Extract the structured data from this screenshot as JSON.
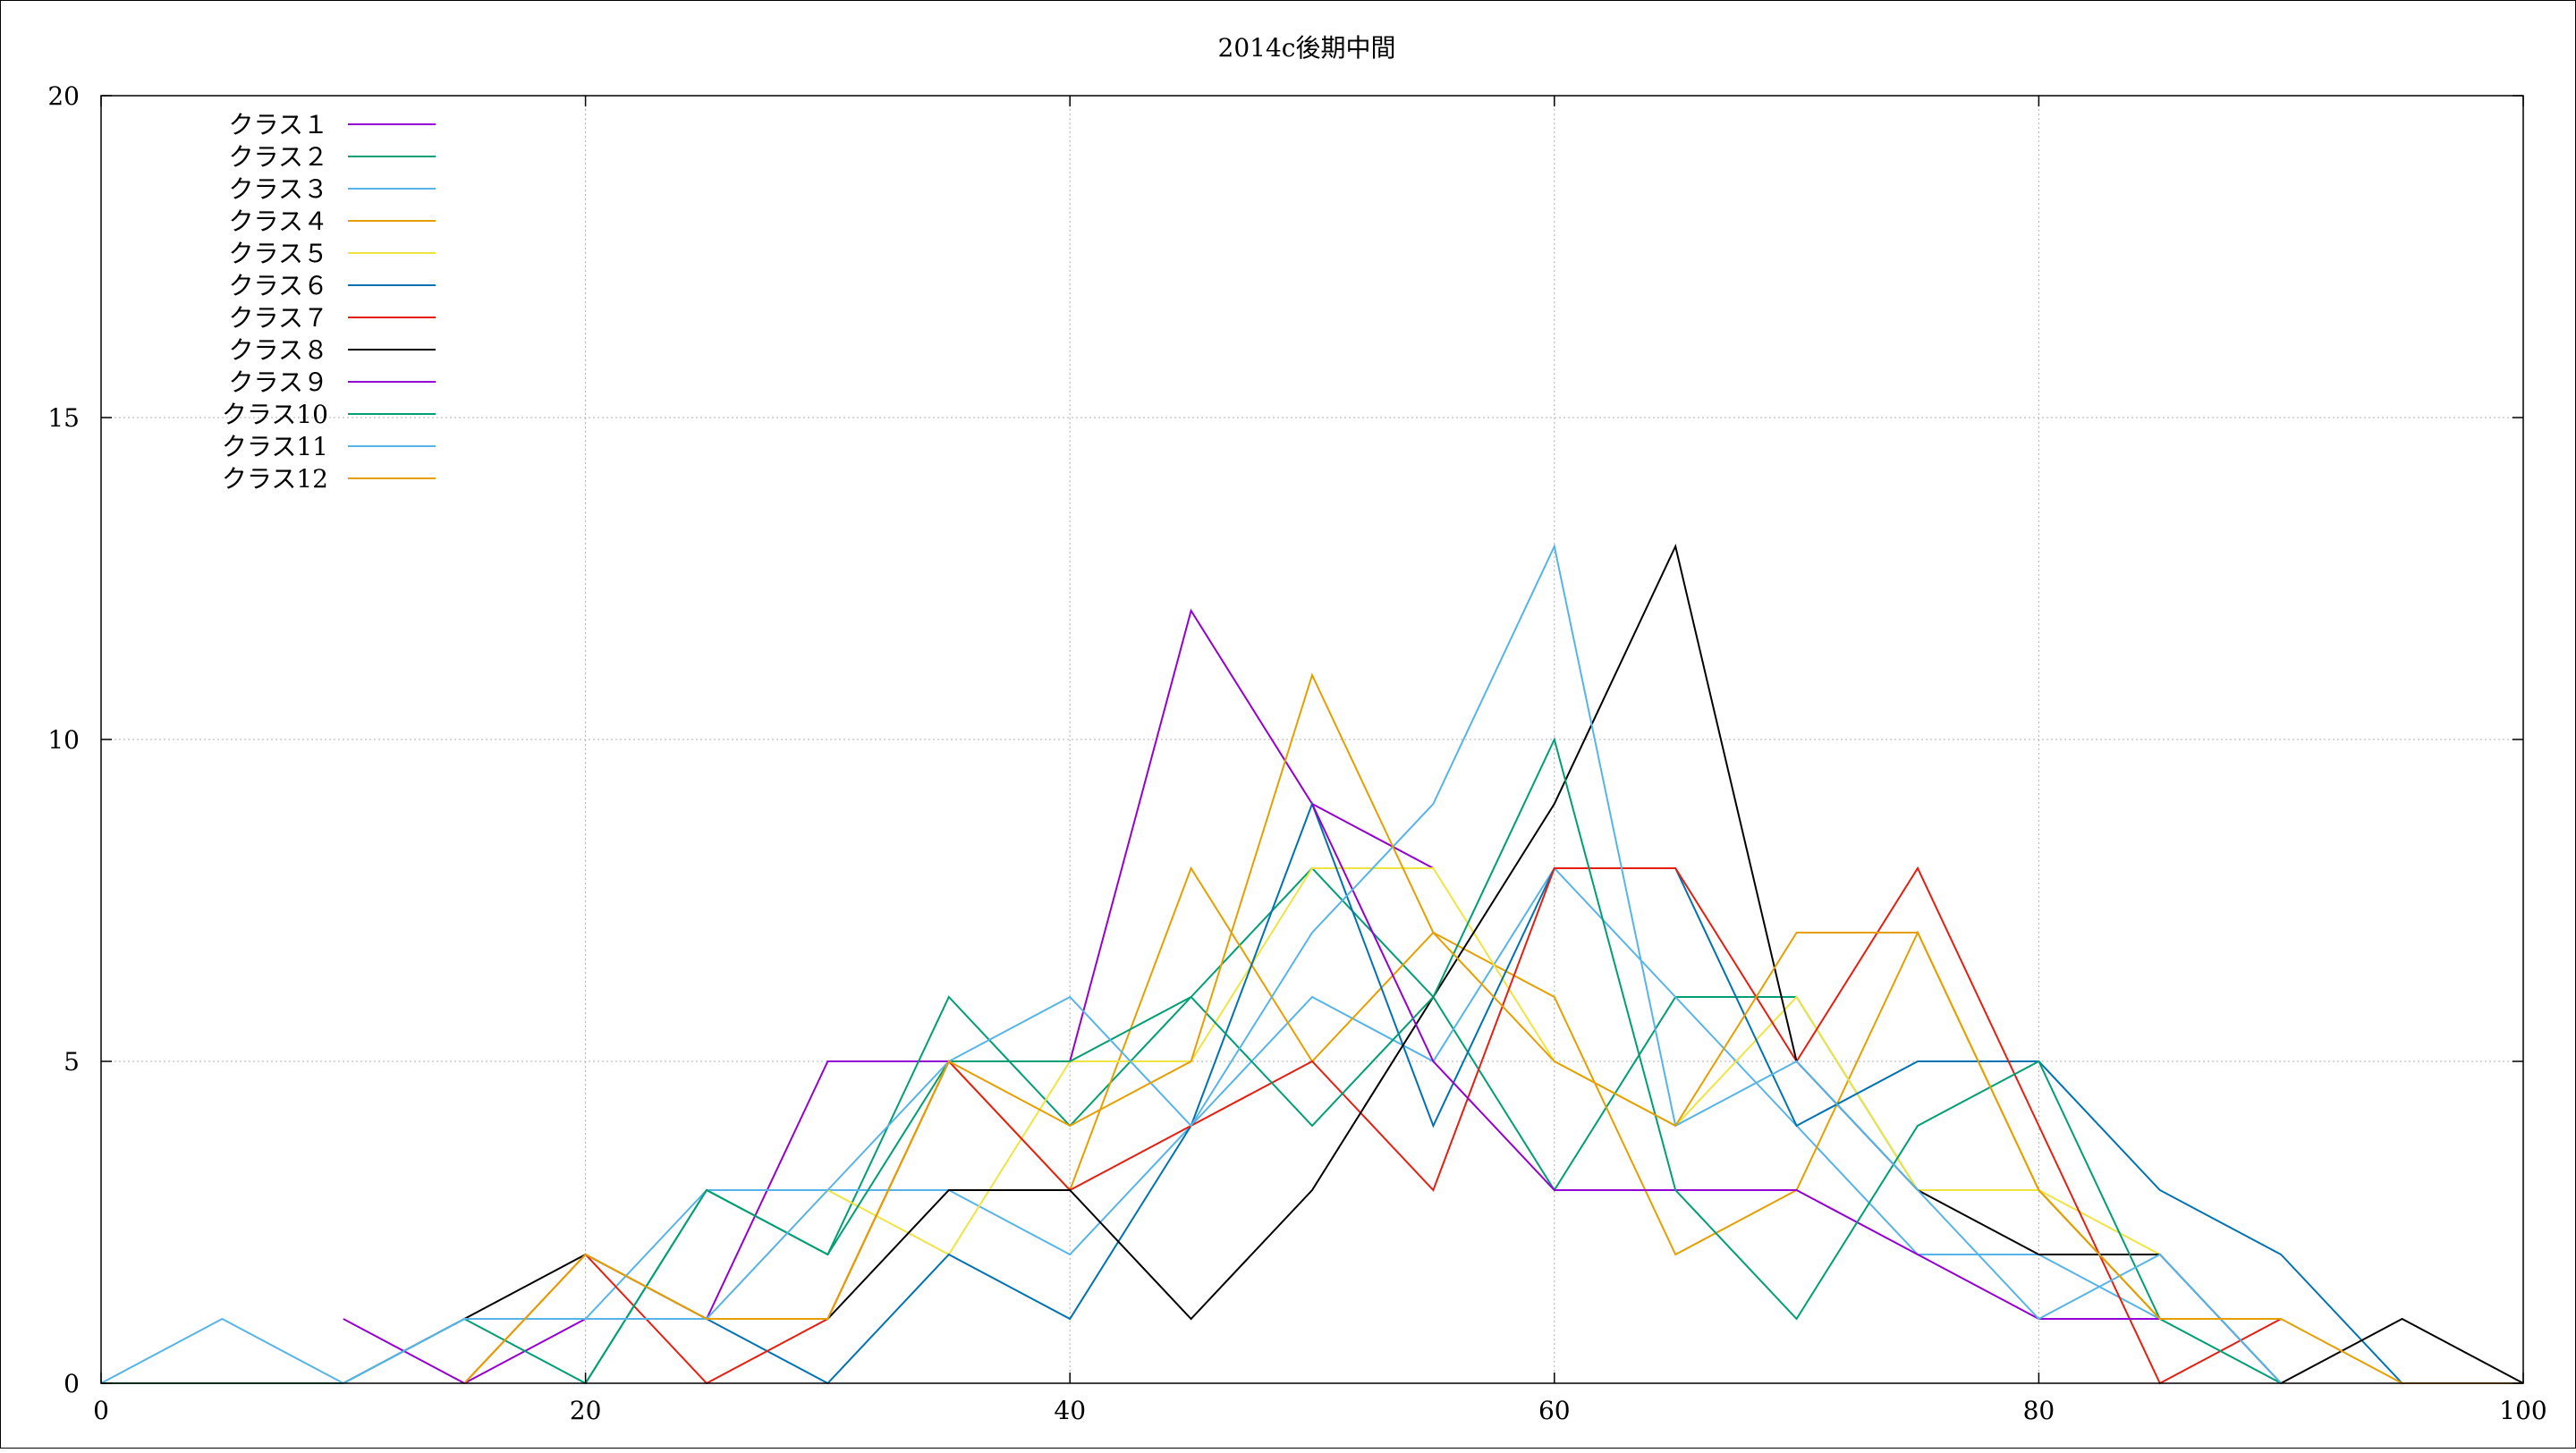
{
  "chart_data": {
    "type": "line",
    "title": "2014c後期中間",
    "xlabel": "",
    "ylabel": "",
    "xlim": [
      0,
      100
    ],
    "ylim": [
      0,
      20
    ],
    "grid": true,
    "legend_position": "top-left",
    "x_ticks": [
      "0",
      "20",
      "40",
      "60",
      "80",
      "100"
    ],
    "y_ticks": [
      "0",
      "5",
      "10",
      "15",
      "20"
    ],
    "series": [
      {
        "name": "クラス１",
        "color": "#9400d3",
        "x": [
          10,
          15,
          20,
          25,
          30,
          35,
          40,
          45,
          50,
          55
        ],
        "y": [
          1,
          0,
          1,
          1,
          5,
          5,
          5,
          12,
          9,
          8
        ]
      },
      {
        "name": "クラス２",
        "color": "#009e73",
        "x": [
          20,
          25,
          30,
          35,
          40,
          45,
          50,
          55,
          60,
          65,
          70,
          75,
          80,
          85
        ],
        "y": [
          0,
          3,
          2,
          6,
          4,
          6,
          8,
          6,
          3,
          6,
          6,
          3,
          3,
          1
        ]
      },
      {
        "name": "クラス３",
        "color": "#56b4e9",
        "x": [
          15,
          20,
          25,
          30,
          35,
          40,
          45,
          50,
          55,
          60,
          65,
          70,
          75,
          80,
          85,
          90
        ],
        "y": [
          1,
          1,
          3,
          3,
          3,
          2,
          4,
          6,
          5,
          8,
          6,
          4,
          2,
          2,
          1,
          1
        ]
      },
      {
        "name": "クラス４",
        "color": "#e69f00",
        "x": [
          25,
          30,
          35,
          40,
          45,
          50,
          55,
          60,
          65,
          70,
          75,
          80,
          85
        ],
        "y": [
          1,
          1,
          5,
          3,
          8,
          5,
          7,
          6,
          2,
          3,
          7,
          3,
          1
        ]
      },
      {
        "name": "クラス５",
        "color": "#f0e442",
        "x": [
          25,
          30,
          35,
          40,
          45,
          50,
          55,
          60,
          65,
          70,
          75,
          80,
          85
        ],
        "y": [
          1,
          3,
          2,
          5,
          5,
          8,
          8,
          5,
          4,
          6,
          3,
          3,
          2
        ]
      },
      {
        "name": "クラス６",
        "color": "#0072b2",
        "x": [
          25,
          30,
          35,
          40,
          45,
          50,
          55,
          60,
          65,
          70,
          75,
          80,
          85,
          90,
          95
        ],
        "y": [
          1,
          0,
          2,
          1,
          4,
          9,
          4,
          8,
          8,
          4,
          5,
          5,
          3,
          2,
          0
        ]
      },
      {
        "name": "クラス７",
        "color": "#e51e10",
        "x": [
          15,
          20,
          25,
          30,
          35,
          40,
          45,
          50,
          55,
          60,
          65,
          70,
          75,
          80,
          85,
          90
        ],
        "y": [
          0,
          2,
          0,
          1,
          5,
          3,
          4,
          5,
          3,
          8,
          8,
          5,
          8,
          4,
          0,
          1
        ]
      },
      {
        "name": "クラス８",
        "color": "#000000",
        "x": [
          10,
          15,
          20,
          25,
          30,
          35,
          40,
          45,
          50,
          55,
          60,
          65,
          70,
          75,
          80,
          85,
          90,
          95,
          100
        ],
        "y": [
          0,
          1,
          2,
          1,
          1,
          3,
          3,
          1,
          3,
          6,
          9,
          13,
          5,
          3,
          2,
          2,
          0,
          1,
          0
        ]
      },
      {
        "name": "クラス９",
        "color": "#9400d3",
        "x": [
          50,
          55,
          60,
          65,
          70,
          75,
          80,
          85
        ],
        "y": [
          9,
          5,
          3,
          3,
          3,
          2,
          1,
          1
        ]
      },
      {
        "name": "クラス10",
        "color": "#009e73",
        "x": [
          0,
          5,
          10,
          15,
          20,
          25,
          30,
          35,
          40,
          45,
          50,
          55,
          60,
          65,
          70,
          75,
          80,
          85,
          90
        ],
        "y": [
          0,
          0,
          0,
          1,
          0,
          3,
          2,
          5,
          5,
          6,
          4,
          6,
          10,
          3,
          1,
          4,
          5,
          1,
          0
        ]
      },
      {
        "name": "クラス11",
        "color": "#56b4e9",
        "x": [
          0,
          5,
          10,
          15,
          20,
          25,
          30,
          35,
          40,
          45,
          50,
          55,
          60,
          65,
          70,
          75,
          80,
          85,
          90
        ],
        "y": [
          0,
          1,
          0,
          1,
          1,
          1,
          3,
          5,
          6,
          4,
          7,
          9,
          13,
          4,
          5,
          3,
          1,
          2,
          0
        ]
      },
      {
        "name": "クラス12",
        "color": "#e69f00",
        "x": [
          15,
          20,
          25,
          30,
          35,
          40,
          45,
          50,
          55,
          60,
          65,
          70,
          75,
          80,
          85,
          90,
          95,
          100
        ],
        "y": [
          0,
          2,
          1,
          1,
          5,
          4,
          5,
          11,
          7,
          5,
          4,
          7,
          7,
          3,
          1,
          1,
          0,
          0
        ]
      }
    ]
  }
}
